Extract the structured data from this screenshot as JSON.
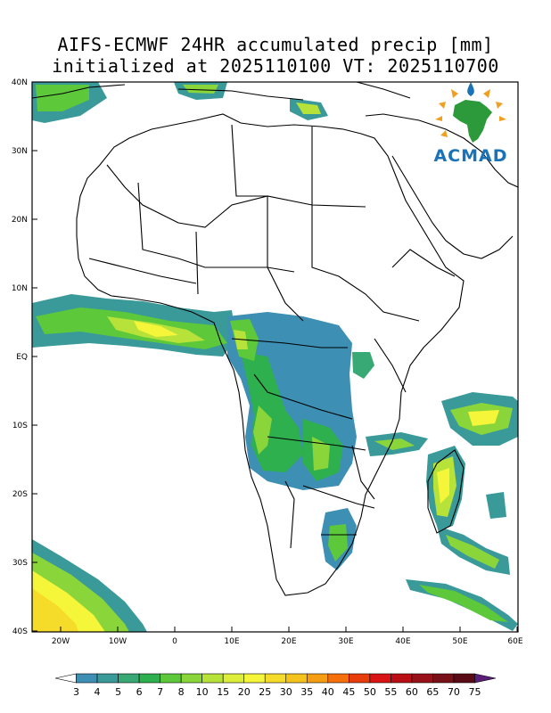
{
  "title": {
    "line1": "AIFS-ECMWF 24HR accumulated precip [mm]",
    "line2": "initialized at 2025110100 VT: 2025110700"
  },
  "axes": {
    "y_ticks": [
      "40N",
      "30N",
      "20N",
      "10N",
      "EQ",
      "10S",
      "20S",
      "30S",
      "40S"
    ],
    "x_ticks": [
      "20W",
      "10W",
      "0",
      "10E",
      "20E",
      "30E",
      "40E",
      "50E",
      "60E"
    ]
  },
  "colorbar": {
    "labels": [
      "3",
      "4",
      "5",
      "6",
      "7",
      "8",
      "10",
      "15",
      "20",
      "25",
      "30",
      "35",
      "40",
      "45",
      "50",
      "55",
      "60",
      "65",
      "70",
      "75"
    ],
    "colors": [
      "#ffffff",
      "#3d8fb3",
      "#3a9a9a",
      "#38a874",
      "#2fb04f",
      "#5cc83a",
      "#8ad63a",
      "#b6e23a",
      "#dcee3a",
      "#f5f53a",
      "#f5dc2a",
      "#f5c31e",
      "#f59e14",
      "#f5700a",
      "#e83c0a",
      "#d81414",
      "#b80e14",
      "#981018",
      "#781018",
      "#5a0a14",
      "#5a1e78"
    ]
  },
  "logo": {
    "text": "ACMAD"
  }
}
